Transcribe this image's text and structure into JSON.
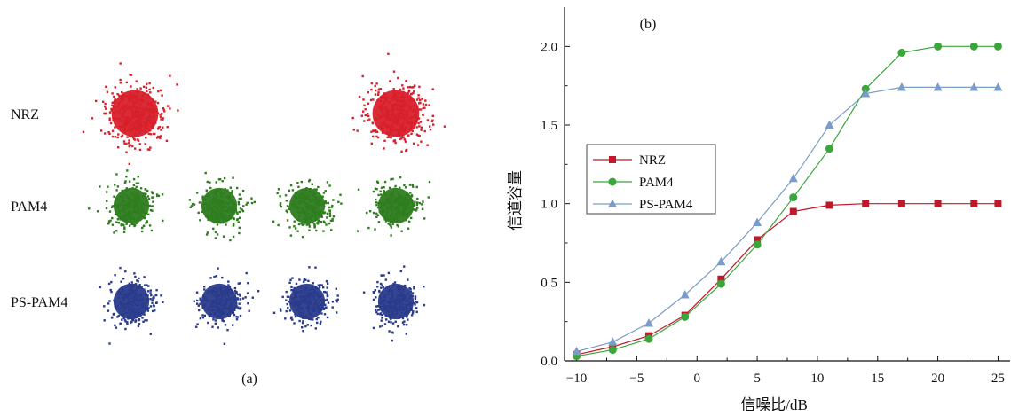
{
  "panel_a": {
    "caption": "(a)",
    "rows": [
      {
        "label": "NRZ",
        "color": "#d8202b",
        "clusters": 2
      },
      {
        "label": "PAM4",
        "color": "#2e7d1f",
        "clusters": 4
      },
      {
        "label": "PS-PAM4",
        "color": "#2a3b8c",
        "clusters": 4
      }
    ]
  },
  "chart_data": {
    "type": "line",
    "panel_label": "(b)",
    "xlabel": "信噪比/dB",
    "ylabel": "信道容量",
    "xlim": [
      -11,
      26
    ],
    "ylim": [
      0.0,
      2.25
    ],
    "xticks": [
      -10,
      -5,
      0,
      5,
      10,
      15,
      20,
      25
    ],
    "xtick_labels": [
      "−10",
      "−5",
      "0",
      "5",
      "10",
      "15",
      "20",
      "25"
    ],
    "yticks": [
      0.0,
      0.5,
      1.0,
      1.5,
      2.0
    ],
    "ytick_labels": [
      "0.0",
      "0.5",
      "1.0",
      "1.5",
      "2.0"
    ],
    "grid": false,
    "legend_position": "middle-left",
    "x": [
      -10,
      -7,
      -4,
      -1,
      2,
      5,
      8,
      11,
      14,
      17,
      20,
      23,
      25
    ],
    "series": [
      {
        "name": "NRZ",
        "marker": "square",
        "color": "#c0182a",
        "values": [
          0.04,
          0.09,
          0.16,
          0.29,
          0.52,
          0.77,
          0.95,
          0.99,
          1.0,
          1.0,
          1.0,
          1.0,
          1.0
        ]
      },
      {
        "name": "PAM4",
        "marker": "circle",
        "color": "#3aa63a",
        "values": [
          0.03,
          0.07,
          0.14,
          0.28,
          0.49,
          0.74,
          1.04,
          1.35,
          1.73,
          1.96,
          2.0,
          2.0,
          2.0
        ]
      },
      {
        "name": "PS-PAM4",
        "marker": "triangle",
        "color": "#7b9cc8",
        "values": [
          0.06,
          0.12,
          0.24,
          0.42,
          0.63,
          0.88,
          1.16,
          1.5,
          1.7,
          1.74,
          1.74,
          1.74,
          1.74
        ]
      }
    ]
  }
}
